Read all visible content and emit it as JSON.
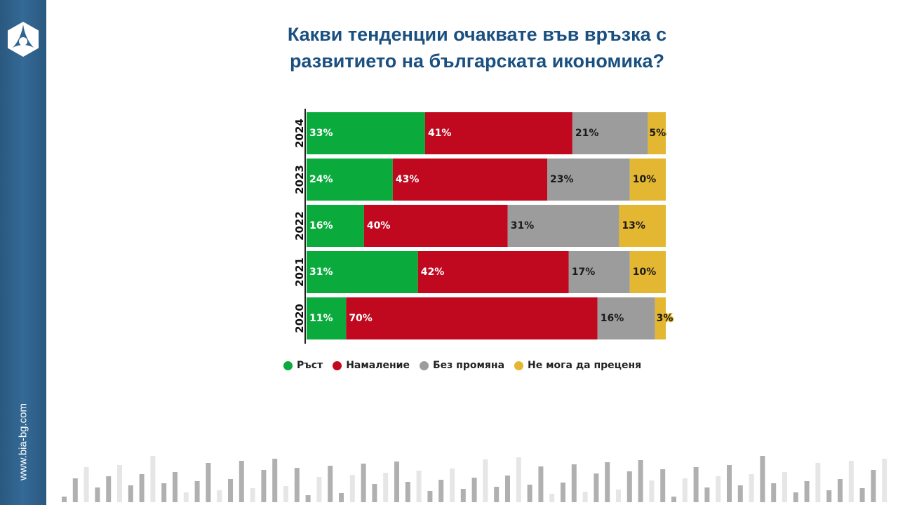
{
  "site": "www.bia-bg.com",
  "chart_data": {
    "type": "bar",
    "orientation": "horizontal-stacked-100",
    "title": "Какви тенденции очаквате във връзка с развитието на българската икономика?",
    "title_lines": [
      "Какви тенденции очаквате във връзка с",
      "развитието на българската икономика?"
    ],
    "categories": [
      "2024",
      "2023",
      "2022",
      "2021",
      "2020"
    ],
    "series": [
      {
        "name": "Ръст",
        "color": "#0aab3c",
        "label_color": "#ffffff",
        "values": [
          33,
          24,
          16,
          31,
          11
        ]
      },
      {
        "name": "Намаление",
        "color": "#c0081f",
        "label_color": "#ffffff",
        "values": [
          41,
          43,
          40,
          42,
          70
        ]
      },
      {
        "name": "Без промяна",
        "color": "#9c9c9c",
        "label_color": "#1a1a1a",
        "values": [
          21,
          23,
          31,
          17,
          16
        ]
      },
      {
        "name": "Не мога да преценя",
        "color": "#e4b732",
        "label_color": "#1a1a1a",
        "values": [
          5,
          10,
          13,
          10,
          3
        ]
      }
    ],
    "value_suffix": "%",
    "legend": "bottom",
    "grid": false
  }
}
